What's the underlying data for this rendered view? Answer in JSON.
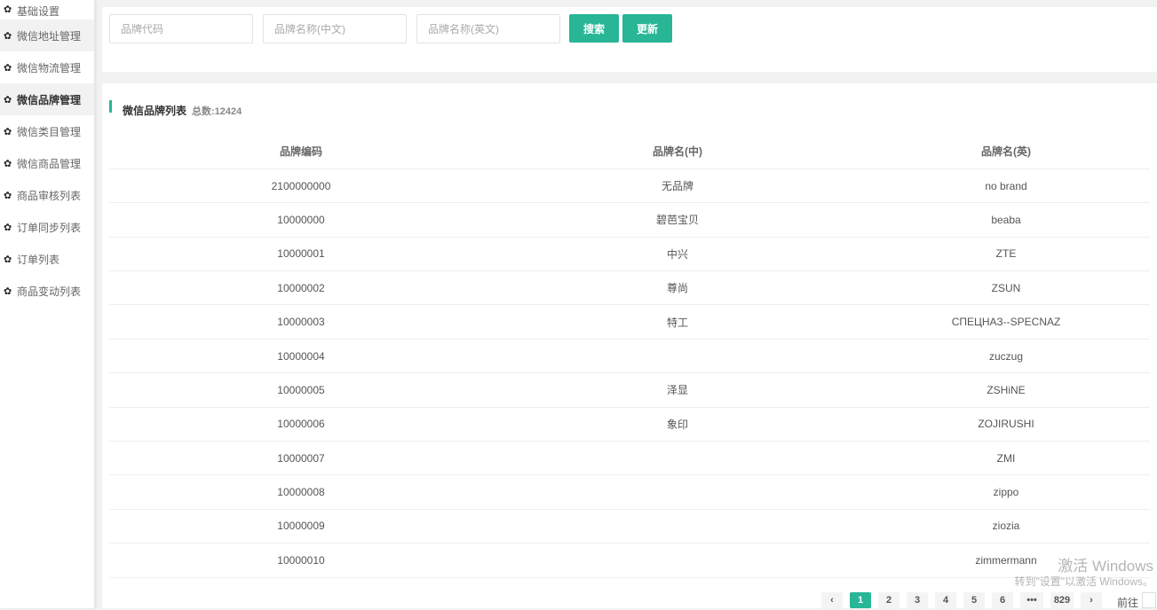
{
  "sidebar": {
    "items": [
      {
        "label": "基础设置",
        "icon": "gear-icon"
      },
      {
        "label": "微信地址管理",
        "icon": "gear-icon"
      },
      {
        "label": "微信物流管理",
        "icon": "gear-icon"
      },
      {
        "label": "微信品牌管理",
        "icon": "gear-icon",
        "active": true
      },
      {
        "label": "微信类目管理",
        "icon": "gear-icon"
      },
      {
        "label": "微信商品管理",
        "icon": "gear-icon"
      },
      {
        "label": "商品审核列表",
        "icon": "gear-icon"
      },
      {
        "label": "订单同步列表",
        "icon": "gear-icon"
      },
      {
        "label": "订单列表",
        "icon": "gear-icon"
      },
      {
        "label": "商品变动列表",
        "icon": "gear-icon"
      }
    ]
  },
  "search": {
    "code_placeholder": "品牌代码",
    "code_value": "",
    "name_cn_placeholder": "品牌名称(中文)",
    "name_cn_value": "",
    "name_en_placeholder": "品牌名称(英文)",
    "name_en_value": "",
    "search_label": "搜索",
    "refresh_label": "更新"
  },
  "list": {
    "title": "微信品牌列表",
    "total": "总数:12424",
    "columns": [
      "品牌编码",
      "品牌名(中)",
      "品牌名(英)"
    ],
    "rows": [
      [
        "2100000000",
        "无品牌",
        "no brand"
      ],
      [
        "10000000",
        "碧芭宝贝",
        "beaba"
      ],
      [
        "10000001",
        "中兴",
        "ZTE"
      ],
      [
        "10000002",
        "尊尚",
        "ZSUN"
      ],
      [
        "10000003",
        "特工",
        "СПЕЦНАЗ--SPECNAZ"
      ],
      [
        "10000004",
        "",
        "zuczug"
      ],
      [
        "10000005",
        "泽显",
        "ZSHiNE"
      ],
      [
        "10000006",
        "象印",
        "ZOJIRUSHI"
      ],
      [
        "10000007",
        "",
        "ZMI"
      ],
      [
        "10000008",
        "",
        "zippo"
      ],
      [
        "10000009",
        "",
        "ziozia"
      ],
      [
        "10000010",
        "",
        "zimmermann"
      ]
    ]
  },
  "pagination": {
    "prev": "‹",
    "pages": [
      "1",
      "2",
      "3",
      "4",
      "5",
      "6",
      "•••",
      "829"
    ],
    "current": "1",
    "next": "›",
    "goto_label": "前往"
  },
  "watermark": {
    "line1": "激活 Windows",
    "line2": "转到\"设置\"以激活 Windows。"
  },
  "colors": {
    "accent": "#28b696"
  }
}
